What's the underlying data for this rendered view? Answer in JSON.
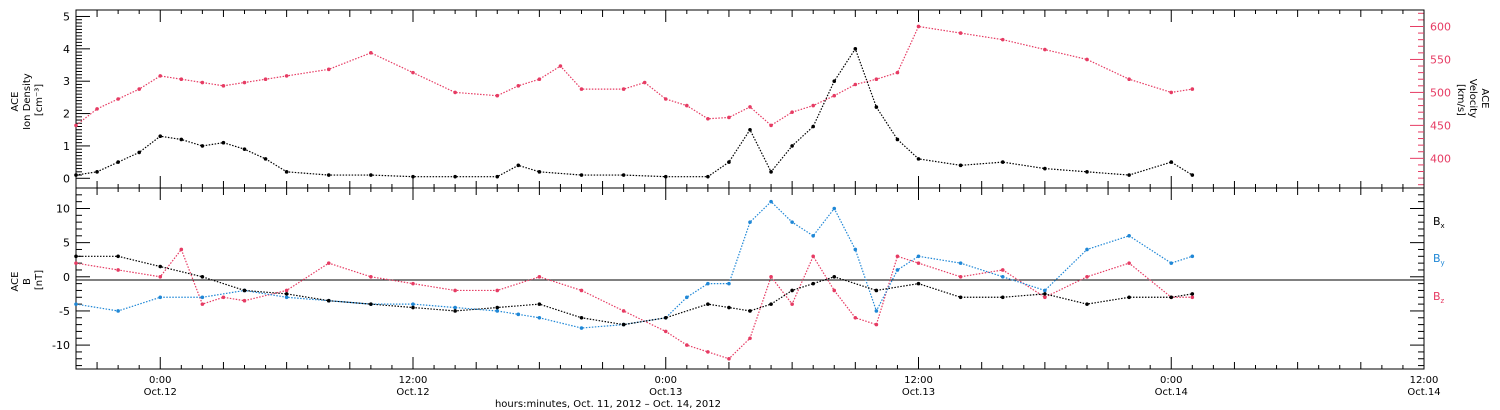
{
  "chart_data": [
    {
      "type": "scatter",
      "panel": "top",
      "ylabel_left": [
        "ACE",
        "Ion Density",
        "[cm⁻³]"
      ],
      "ylabel_right": [
        "ACE",
        "Velocity",
        "[km/s]"
      ],
      "ylim_left": [
        -0.3,
        5.2
      ],
      "yticks_left": [
        0,
        1,
        2,
        3,
        4,
        5
      ],
      "ylim_right": [
        355,
        625
      ],
      "yticks_right": [
        400,
        450,
        500,
        550,
        600
      ],
      "x_hours": [
        -4,
        60
      ],
      "colors": {
        "density": "#000000",
        "velocity": "#e63b63"
      },
      "series": [
        {
          "name": "Ion Density",
          "axis": "left",
          "x": [
            -4,
            -3,
            -2,
            -1,
            0,
            1,
            2,
            3,
            4,
            5,
            6,
            8,
            10,
            12,
            14,
            16,
            17,
            18,
            20,
            22,
            24,
            26,
            27,
            28,
            29,
            30,
            31,
            32,
            33,
            34,
            35,
            36,
            38,
            40,
            42,
            44,
            46,
            48,
            49
          ],
          "values": [
            0.1,
            0.2,
            0.5,
            0.8,
            1.3,
            1.2,
            1.0,
            1.1,
            0.9,
            0.6,
            0.2,
            0.1,
            0.1,
            0.05,
            0.05,
            0.05,
            0.4,
            0.2,
            0.1,
            0.1,
            0.05,
            0.05,
            0.5,
            1.5,
            0.2,
            1.0,
            1.6,
            3.0,
            4.0,
            2.2,
            1.2,
            0.6,
            0.4,
            0.5,
            0.3,
            0.2,
            0.1,
            0.5,
            0.1
          ]
        },
        {
          "name": "Velocity",
          "axis": "right",
          "x": [
            -4,
            -3,
            -2,
            -1,
            0,
            1,
            2,
            3,
            4,
            5,
            6,
            8,
            10,
            12,
            14,
            16,
            17,
            18,
            19,
            20,
            22,
            23,
            24,
            25,
            26,
            27,
            28,
            29,
            30,
            31,
            32,
            33,
            34,
            35,
            36,
            38,
            40,
            42,
            44,
            46,
            48,
            49
          ],
          "values": [
            450,
            475,
            490,
            505,
            525,
            520,
            515,
            510,
            515,
            520,
            525,
            535,
            560,
            530,
            500,
            495,
            510,
            520,
            540,
            505,
            505,
            515,
            490,
            480,
            460,
            462,
            478,
            450,
            470,
            480,
            495,
            512,
            520,
            530,
            600,
            590,
            580,
            565,
            550,
            520,
            500,
            505
          ]
        }
      ]
    },
    {
      "type": "scatter",
      "panel": "bottom",
      "ylabel": [
        "ACE",
        "B",
        "[nT]"
      ],
      "ylim": [
        -13.5,
        13
      ],
      "yticks": [
        -10,
        -5,
        0,
        5,
        10
      ],
      "x_hours": [
        -4,
        60
      ],
      "colors": {
        "Bx": "#000000",
        "By": "#1f87d6",
        "Bz": "#e63b63"
      },
      "legend": [
        {
          "label": "B",
          "sub": "x",
          "color": "#000000"
        },
        {
          "label": "B",
          "sub": "y",
          "color": "#1f87d6"
        },
        {
          "label": "B",
          "sub": "z",
          "color": "#e63b63"
        }
      ],
      "series": [
        {
          "name": "Bx",
          "x": [
            -4,
            -2,
            0,
            2,
            4,
            6,
            8,
            10,
            12,
            14,
            16,
            18,
            20,
            22,
            24,
            26,
            27,
            28,
            29,
            30,
            31,
            32,
            34,
            36,
            38,
            40,
            42,
            44,
            46,
            48,
            49
          ],
          "values": [
            3,
            3,
            1.5,
            0,
            -2,
            -2.5,
            -3.5,
            -4,
            -4.5,
            -5,
            -4.5,
            -4,
            -6,
            -7,
            -6,
            -4,
            -4.5,
            -5,
            -4,
            -2,
            -1,
            0,
            -2,
            -1,
            -3,
            -3,
            -2.5,
            -4,
            -3,
            -3,
            -2.5
          ]
        },
        {
          "name": "By",
          "x": [
            -4,
            -2,
            0,
            2,
            4,
            6,
            8,
            10,
            12,
            14,
            16,
            17,
            18,
            20,
            22,
            24,
            25,
            26,
            27,
            28,
            29,
            30,
            31,
            32,
            33,
            34,
            35,
            36,
            38,
            40,
            42,
            44,
            46,
            48,
            49
          ],
          "values": [
            -4,
            -5,
            -3,
            -3,
            -2,
            -3,
            -3.5,
            -4,
            -4,
            -4.5,
            -5,
            -5.5,
            -6,
            -7.5,
            -7,
            -6,
            -3,
            -1,
            -1,
            8,
            11,
            8,
            6,
            10,
            4,
            -5,
            1,
            3,
            2,
            0,
            -2,
            4,
            6,
            2,
            3
          ]
        },
        {
          "name": "Bz",
          "x": [
            -4,
            -2,
            0,
            1,
            2,
            3,
            4,
            6,
            8,
            10,
            12,
            14,
            16,
            18,
            20,
            22,
            24,
            25,
            26,
            27,
            28,
            29,
            30,
            31,
            32,
            33,
            34,
            35,
            36,
            38,
            40,
            42,
            44,
            46,
            48,
            49
          ],
          "values": [
            2,
            1,
            0,
            4,
            -4,
            -3,
            -3.5,
            -2,
            2,
            0,
            -1,
            -2,
            -2,
            0,
            -2,
            -5,
            -8,
            -10,
            -11,
            -12,
            -9,
            0,
            -4,
            3,
            -2,
            -6,
            -7,
            3,
            2,
            0,
            1,
            -3,
            0,
            2,
            -3,
            -3
          ]
        }
      ]
    }
  ],
  "x_axis": {
    "ticks": [
      {
        "hours": 0,
        "time": "0:00",
        "date": "Oct.12"
      },
      {
        "hours": 12,
        "time": "12:00",
        "date": "Oct.12"
      },
      {
        "hours": 24,
        "time": "0:00",
        "date": "Oct.13"
      },
      {
        "hours": 36,
        "time": "12:00",
        "date": "Oct.13"
      },
      {
        "hours": 48,
        "time": "0:00",
        "date": "Oct.14"
      },
      {
        "hours": 60,
        "time": "12:00",
        "date": "Oct.14"
      }
    ],
    "title": "hours:minutes, Oct. 11, 2012 – Oct. 14, 2012"
  }
}
